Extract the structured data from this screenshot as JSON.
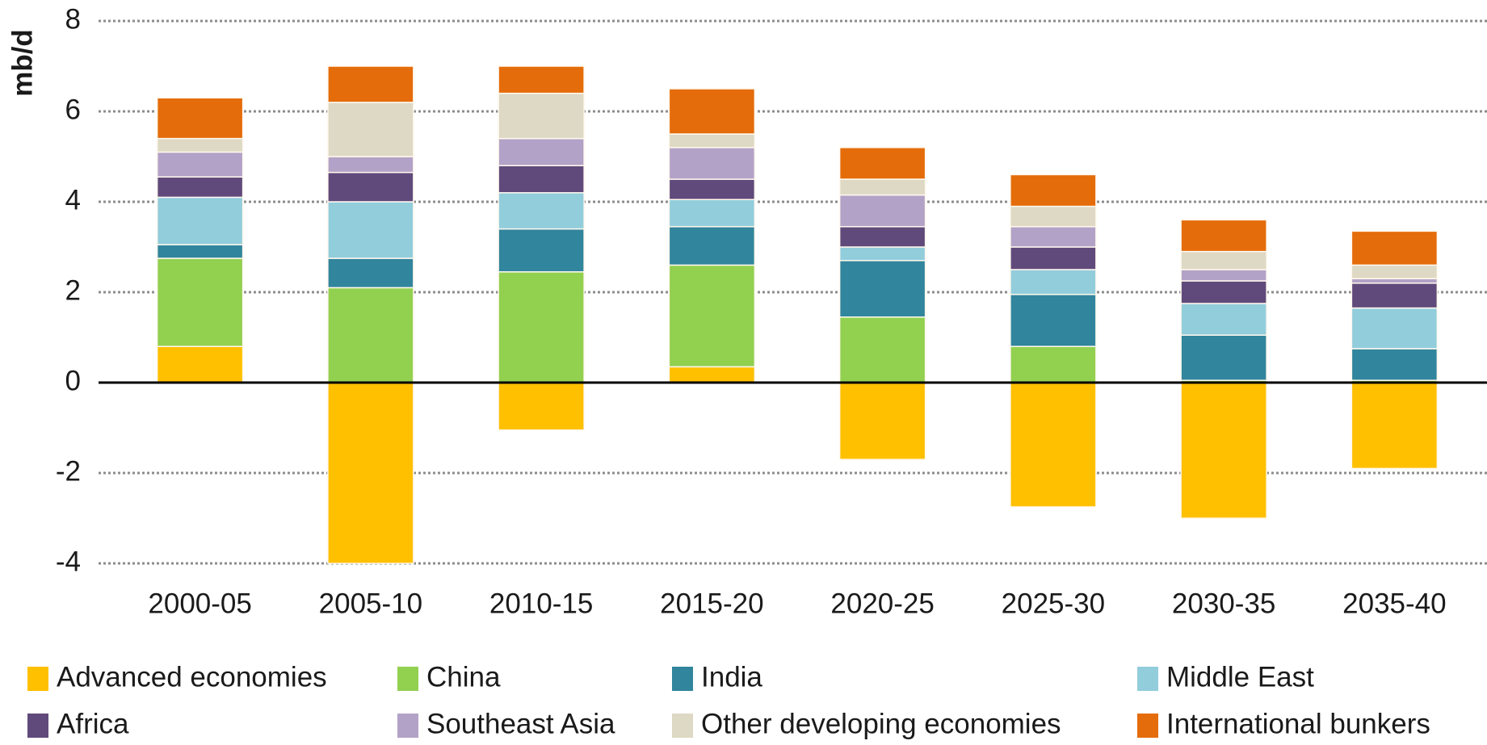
{
  "chart_data": {
    "type": "stacked-bar",
    "y_label": "mb/d",
    "categories": [
      "2000-05",
      "2005-10",
      "2010-15",
      "2015-20",
      "2020-25",
      "2025-30",
      "2030-35",
      "2035-40"
    ],
    "series": [
      {
        "name": "Advanced economies",
        "color": "#ffc000",
        "values": [
          0.8,
          -4.0,
          -1.05,
          0.35,
          -1.7,
          -2.75,
          -3.0,
          -1.9
        ]
      },
      {
        "name": "China",
        "color": "#92d050",
        "values": [
          1.95,
          2.1,
          2.45,
          2.25,
          1.45,
          0.8,
          0.05,
          0.05
        ]
      },
      {
        "name": "India",
        "color": "#31859c",
        "values": [
          0.3,
          0.65,
          0.95,
          0.85,
          1.25,
          1.15,
          1.0,
          0.7
        ]
      },
      {
        "name": "Middle East",
        "color": "#92cddc",
        "values": [
          1.05,
          1.25,
          0.8,
          0.6,
          0.3,
          0.55,
          0.7,
          0.9
        ]
      },
      {
        "name": "Africa",
        "color": "#604a7b",
        "values": [
          0.45,
          0.65,
          0.6,
          0.45,
          0.45,
          0.5,
          0.5,
          0.55
        ]
      },
      {
        "name": "Southeast Asia",
        "color": "#b3a2c7",
        "values": [
          0.55,
          0.35,
          0.6,
          0.7,
          0.7,
          0.45,
          0.25,
          0.1
        ]
      },
      {
        "name": "Other developing economies",
        "color": "#ddd9c4",
        "values": [
          0.3,
          1.2,
          1.0,
          0.3,
          0.35,
          0.45,
          0.4,
          0.3
        ]
      },
      {
        "name": "International bunkers",
        "color": "#e46c0a",
        "values": [
          0.9,
          0.8,
          0.6,
          1.0,
          0.7,
          0.7,
          0.7,
          0.75
        ]
      }
    ],
    "ylim": [
      -4,
      8
    ],
    "yticks": [
      -4,
      -2,
      0,
      2,
      4,
      6,
      8
    ],
    "grid": true
  }
}
